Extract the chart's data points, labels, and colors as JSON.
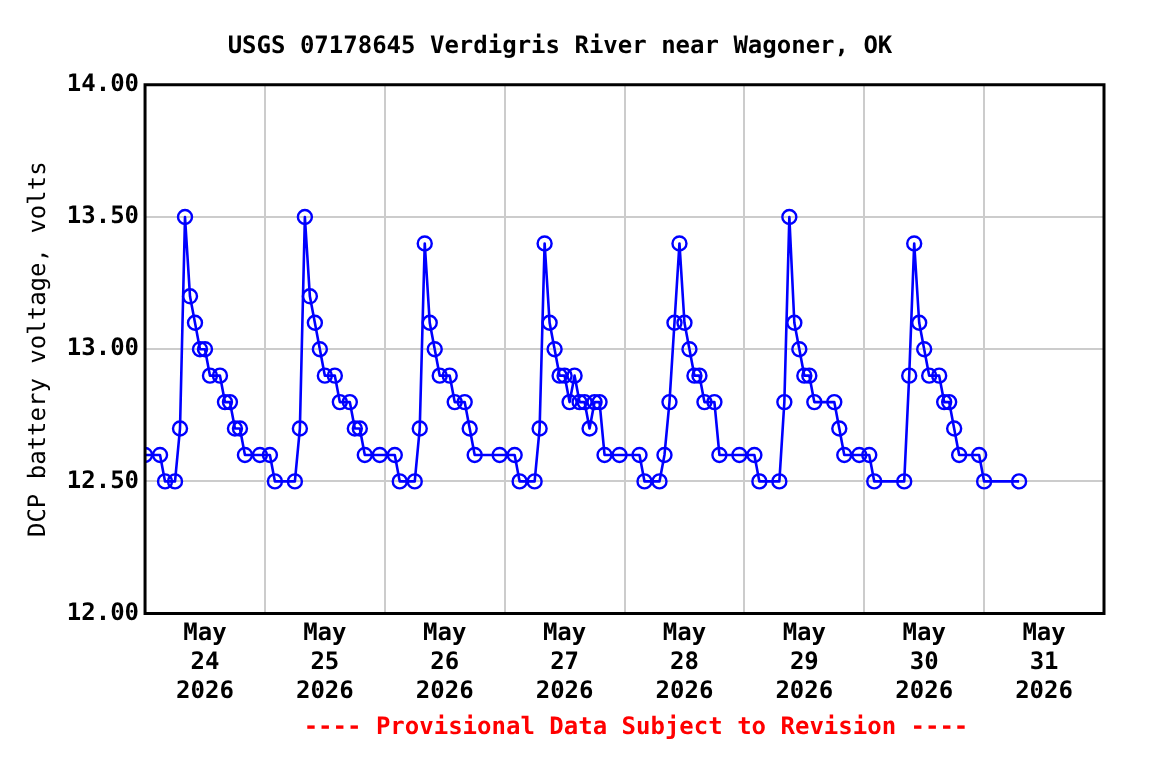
{
  "chart_data": {
    "type": "line",
    "title": "USGS 07178645 Verdigris River near Wagoner, OK",
    "ylabel": "DCP battery voltage, volts",
    "annotations": [
      "---- Provisional Data Subject to Revision ----"
    ],
    "x": [
      "2026-05-24T00:00",
      "2026-05-24T03:00",
      "2026-05-24T04:00",
      "2026-05-24T06:00",
      "2026-05-24T07:00",
      "2026-05-24T08:00",
      "2026-05-24T09:00",
      "2026-05-24T10:00",
      "2026-05-24T11:00",
      "2026-05-24T12:00",
      "2026-05-24T13:00",
      "2026-05-24T15:00",
      "2026-05-24T16:00",
      "2026-05-24T17:00",
      "2026-05-24T18:00",
      "2026-05-24T19:00",
      "2026-05-24T20:00",
      "2026-05-24T23:00",
      "2026-05-25T01:00",
      "2026-05-25T02:00",
      "2026-05-25T06:00",
      "2026-05-25T07:00",
      "2026-05-25T08:00",
      "2026-05-25T09:00",
      "2026-05-25T10:00",
      "2026-05-25T11:00",
      "2026-05-25T12:00",
      "2026-05-25T14:00",
      "2026-05-25T15:00",
      "2026-05-25T17:00",
      "2026-05-25T18:00",
      "2026-05-25T19:00",
      "2026-05-25T20:00",
      "2026-05-25T23:00",
      "2026-05-26T02:00",
      "2026-05-26T03:00",
      "2026-05-26T06:00",
      "2026-05-26T07:00",
      "2026-05-26T08:00",
      "2026-05-26T09:00",
      "2026-05-26T10:00",
      "2026-05-26T11:00",
      "2026-05-26T13:00",
      "2026-05-26T14:00",
      "2026-05-26T16:00",
      "2026-05-26T17:00",
      "2026-05-26T18:00",
      "2026-05-26T23:00",
      "2026-05-27T02:00",
      "2026-05-27T03:00",
      "2026-05-27T06:00",
      "2026-05-27T07:00",
      "2026-05-27T08:00",
      "2026-05-27T09:00",
      "2026-05-27T10:00",
      "2026-05-27T11:00",
      "2026-05-27T12:00",
      "2026-05-27T13:00",
      "2026-05-27T14:00",
      "2026-05-27T15:00",
      "2026-05-27T16:00",
      "2026-05-27T17:00",
      "2026-05-27T18:00",
      "2026-05-27T19:00",
      "2026-05-27T20:00",
      "2026-05-27T23:00",
      "2026-05-28T03:00",
      "2026-05-28T04:00",
      "2026-05-28T07:00",
      "2026-05-28T08:00",
      "2026-05-28T09:00",
      "2026-05-28T10:00",
      "2026-05-28T11:00",
      "2026-05-28T12:00",
      "2026-05-28T13:00",
      "2026-05-28T14:00",
      "2026-05-28T15:00",
      "2026-05-28T16:00",
      "2026-05-28T18:00",
      "2026-05-28T19:00",
      "2026-05-28T23:00",
      "2026-05-29T02:00",
      "2026-05-29T03:00",
      "2026-05-29T07:00",
      "2026-05-29T08:00",
      "2026-05-29T09:00",
      "2026-05-29T10:00",
      "2026-05-29T11:00",
      "2026-05-29T12:00",
      "2026-05-29T13:00",
      "2026-05-29T14:00",
      "2026-05-29T18:00",
      "2026-05-29T19:00",
      "2026-05-29T20:00",
      "2026-05-29T23:00",
      "2026-05-30T01:00",
      "2026-05-30T02:00",
      "2026-05-30T08:00",
      "2026-05-30T09:00",
      "2026-05-30T10:00",
      "2026-05-30T11:00",
      "2026-05-30T12:00",
      "2026-05-30T13:00",
      "2026-05-30T15:00",
      "2026-05-30T16:00",
      "2026-05-30T17:00",
      "2026-05-30T18:00",
      "2026-05-30T19:00",
      "2026-05-30T23:00",
      "2026-05-31T00:00",
      "2026-05-31T07:00"
    ],
    "series": [
      {
        "color": "#0000ff",
        "values": [
          12.6,
          12.6,
          12.5,
          12.5,
          12.7,
          13.5,
          13.2,
          13.1,
          13.0,
          13.0,
          12.9,
          12.9,
          12.8,
          12.8,
          12.7,
          12.7,
          12.6,
          12.6,
          12.6,
          12.5,
          12.5,
          12.7,
          13.5,
          13.2,
          13.1,
          13.0,
          12.9,
          12.9,
          12.8,
          12.8,
          12.7,
          12.7,
          12.6,
          12.6,
          12.6,
          12.5,
          12.5,
          12.7,
          13.4,
          13.1,
          13.0,
          12.9,
          12.9,
          12.8,
          12.8,
          12.7,
          12.6,
          12.6,
          12.6,
          12.5,
          12.5,
          12.7,
          13.4,
          13.1,
          13.0,
          12.9,
          12.9,
          12.8,
          12.9,
          12.8,
          12.8,
          12.7,
          12.8,
          12.8,
          12.6,
          12.6,
          12.6,
          12.5,
          12.5,
          12.6,
          12.8,
          13.1,
          13.4,
          13.1,
          13.0,
          12.9,
          12.9,
          12.8,
          12.8,
          12.6,
          12.6,
          12.6,
          12.5,
          12.5,
          12.8,
          13.5,
          13.1,
          13.0,
          12.9,
          12.9,
          12.8,
          12.8,
          12.7,
          12.6,
          12.6,
          12.6,
          12.5,
          12.5,
          12.9,
          13.4,
          13.1,
          13.0,
          12.9,
          12.9,
          12.8,
          12.8,
          12.7,
          12.6,
          12.6,
          12.5,
          12.5
        ]
      }
    ],
    "xlim": [
      "2026-05-24T00:00",
      "2026-06-01T00:00"
    ],
    "xticks": [
      {
        "value": "2026-05-24T12:00",
        "label": "May\n24\n2026"
      },
      {
        "value": "2026-05-25T00:00",
        "label": null
      },
      {
        "value": "2026-05-25T12:00",
        "label": "May\n25\n2026"
      },
      {
        "value": "2026-05-26T00:00",
        "label": null
      },
      {
        "value": "2026-05-26T12:00",
        "label": "May\n26\n2026"
      },
      {
        "value": "2026-05-27T00:00",
        "label": null
      },
      {
        "value": "2026-05-27T12:00",
        "label": "May\n27\n2026"
      },
      {
        "value": "2026-05-28T00:00",
        "label": null
      },
      {
        "value": "2026-05-28T12:00",
        "label": "May\n28\n2026"
      },
      {
        "value": "2026-05-29T00:00",
        "label": null
      },
      {
        "value": "2026-05-29T12:00",
        "label": "May\n29\n2026"
      },
      {
        "value": "2026-05-30T00:00",
        "label": null
      },
      {
        "value": "2026-05-30T12:00",
        "label": "May\n30\n2026"
      },
      {
        "value": "2026-05-31T00:00",
        "label": null
      },
      {
        "value": "2026-05-31T12:00",
        "label": "May\n31\n2026"
      }
    ],
    "ylim": [
      12,
      14
    ],
    "yticks": [
      {
        "value": 12,
        "label": "12.00"
      },
      {
        "value": 12.5,
        "label": "12.50"
      },
      {
        "value": 13,
        "label": "13.00"
      },
      {
        "value": 13.5,
        "label": "13.50"
      },
      {
        "value": 14,
        "label": "14.00"
      }
    ],
    "grid": true,
    "legend": false,
    "marker": "circle",
    "line_style": "solid"
  }
}
